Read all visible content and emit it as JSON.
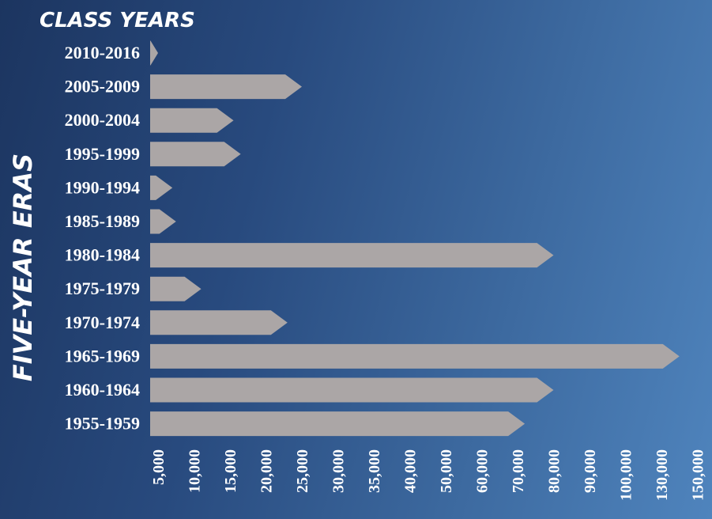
{
  "chart_data": {
    "type": "bar",
    "orientation": "horizontal",
    "title": "CLASS YEARS",
    "ylabel": "FIVE-YEAR ERAS",
    "xlabel": "",
    "categories": [
      "2010-2016",
      "2005-2009",
      "2000-2004",
      "1995-1999",
      "1990-1994",
      "1985-1989",
      "1980-1984",
      "1975-1979",
      "1970-1974",
      "1965-1969",
      "1960-1964",
      "1955-1959"
    ],
    "values": [
      5000,
      25000,
      15500,
      16500,
      7000,
      7500,
      80000,
      11000,
      23000,
      140000,
      80000,
      72000
    ],
    "x_ticks": [
      "5,000",
      "10,000",
      "15,000",
      "20,000",
      "25,000",
      "30,000",
      "35,000",
      "40,000",
      "50,000",
      "60,000",
      "70,000",
      "80,000",
      "90,000",
      "100,000",
      "130,000",
      "150,000"
    ],
    "x_tick_values": [
      5000,
      10000,
      15000,
      20000,
      25000,
      30000,
      35000,
      40000,
      50000,
      60000,
      70000,
      80000,
      90000,
      100000,
      130000,
      150000
    ],
    "bar_shape": "arrow",
    "grid": false,
    "legend": "none"
  },
  "colors": {
    "bar": "#aba6a6",
    "text": "#ffffff",
    "background_start": "#1c3560",
    "background_end": "#4f84bd"
  }
}
